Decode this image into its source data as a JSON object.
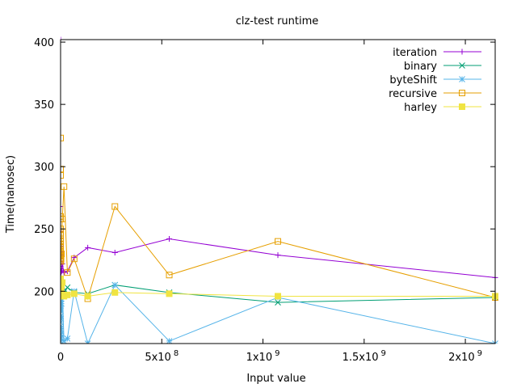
{
  "chart_data": {
    "type": "line",
    "title": "clz-test runtime",
    "xlabel": "Input value",
    "ylabel": "Time(nanosec)",
    "xlim": [
      0,
      2147483648
    ],
    "ylim": [
      158,
      402
    ],
    "grid": false,
    "legend_position": "top-right",
    "y_ticks": [
      {
        "value": 200,
        "label": "200"
      },
      {
        "value": 250,
        "label": "250"
      },
      {
        "value": 300,
        "label": "300"
      },
      {
        "value": 350,
        "label": "350"
      },
      {
        "value": 400,
        "label": "400"
      }
    ],
    "x_ticks": [
      {
        "value": 0,
        "base": "0",
        "exp": ""
      },
      {
        "value": 500000000,
        "base": "5x10",
        "exp": "8"
      },
      {
        "value": 1000000000,
        "base": "1x10",
        "exp": "9"
      },
      {
        "value": 1500000000,
        "base": "1.5x10",
        "exp": "9"
      },
      {
        "value": 2000000000,
        "base": "2x10",
        "exp": "9"
      }
    ],
    "series": [
      {
        "name": "iteration",
        "color": "#9400d3",
        "marker": "plus",
        "points": [
          [
            1,
            402
          ],
          [
            2,
            268
          ],
          [
            4,
            248
          ],
          [
            8,
            240
          ],
          [
            16,
            236
          ],
          [
            32,
            232
          ],
          [
            64,
            229
          ],
          [
            128,
            226
          ],
          [
            256,
            224
          ],
          [
            512,
            222
          ],
          [
            1024,
            221
          ],
          [
            2048,
            220
          ],
          [
            4096,
            219
          ],
          [
            8192,
            218
          ],
          [
            16384,
            218
          ],
          [
            32768,
            217
          ],
          [
            65536,
            217
          ],
          [
            131072,
            216
          ],
          [
            262144,
            216
          ],
          [
            524288,
            215
          ],
          [
            1048576,
            215
          ],
          [
            2097152,
            215
          ],
          [
            4194304,
            216
          ],
          [
            8388608,
            222
          ],
          [
            16777216,
            215
          ],
          [
            33554432,
            216
          ],
          [
            67108864,
            227
          ],
          [
            134217728,
            235
          ],
          [
            268435456,
            231
          ],
          [
            536870912,
            242
          ],
          [
            1073741824,
            229
          ],
          [
            2147483648,
            211
          ]
        ]
      },
      {
        "name": "binary",
        "color": "#009e73",
        "marker": "cross",
        "points": [
          [
            1,
            202
          ],
          [
            2,
            200
          ],
          [
            4,
            198
          ],
          [
            8,
            197
          ],
          [
            16,
            199
          ],
          [
            32,
            201
          ],
          [
            64,
            200
          ],
          [
            128,
            198
          ],
          [
            256,
            197
          ],
          [
            512,
            199
          ],
          [
            1024,
            201
          ],
          [
            2048,
            200
          ],
          [
            4096,
            198
          ],
          [
            8192,
            197
          ],
          [
            16384,
            199
          ],
          [
            32768,
            200
          ],
          [
            65536,
            198
          ],
          [
            131072,
            197
          ],
          [
            262144,
            199
          ],
          [
            524288,
            200
          ],
          [
            1048576,
            198
          ],
          [
            2097152,
            197
          ],
          [
            4194304,
            199
          ],
          [
            8388608,
            200
          ],
          [
            16777216,
            198
          ],
          [
            33554432,
            203
          ],
          [
            67108864,
            199
          ],
          [
            134217728,
            198
          ],
          [
            268435456,
            205
          ],
          [
            536870912,
            199
          ],
          [
            1073741824,
            191
          ],
          [
            2147483648,
            195
          ]
        ]
      },
      {
        "name": "byteShift",
        "color": "#56b4e9",
        "marker": "star",
        "points": [
          [
            1,
            185
          ],
          [
            2,
            178
          ],
          [
            4,
            172
          ],
          [
            8,
            168
          ],
          [
            16,
            165
          ],
          [
            32,
            162
          ],
          [
            64,
            160
          ],
          [
            128,
            163
          ],
          [
            256,
            166
          ],
          [
            512,
            170
          ],
          [
            1024,
            175
          ],
          [
            2048,
            180
          ],
          [
            4096,
            186
          ],
          [
            8192,
            190
          ],
          [
            16384,
            195
          ],
          [
            32768,
            198
          ],
          [
            65536,
            200
          ],
          [
            131072,
            192
          ],
          [
            262144,
            188
          ],
          [
            524288,
            184
          ],
          [
            1048576,
            180
          ],
          [
            2097152,
            178
          ],
          [
            4194304,
            190
          ],
          [
            8388608,
            200
          ],
          [
            16777216,
            160
          ],
          [
            33554432,
            162
          ],
          [
            67108864,
            200
          ],
          [
            134217728,
            158
          ],
          [
            268435456,
            205
          ],
          [
            536870912,
            160
          ],
          [
            1073741824,
            195
          ],
          [
            2147483648,
            158
          ]
        ]
      },
      {
        "name": "recursive",
        "color": "#e69f00",
        "marker": "square",
        "points": [
          [
            1,
            323
          ],
          [
            2,
            298
          ],
          [
            4,
            293
          ],
          [
            8,
            260
          ],
          [
            16,
            258
          ],
          [
            32,
            250
          ],
          [
            64,
            245
          ],
          [
            128,
            242
          ],
          [
            256,
            240
          ],
          [
            512,
            238
          ],
          [
            1024,
            236
          ],
          [
            2048,
            235
          ],
          [
            4096,
            233
          ],
          [
            8192,
            232
          ],
          [
            16384,
            230
          ],
          [
            32768,
            229
          ],
          [
            65536,
            228
          ],
          [
            131072,
            227
          ],
          [
            262144,
            226
          ],
          [
            524288,
            225
          ],
          [
            1048576,
            224
          ],
          [
            2097152,
            226
          ],
          [
            4194304,
            230
          ],
          [
            8388608,
            258
          ],
          [
            16777216,
            284
          ],
          [
            33554432,
            215
          ],
          [
            67108864,
            226
          ],
          [
            134217728,
            194
          ],
          [
            268435456,
            268
          ],
          [
            536870912,
            213
          ],
          [
            1073741824,
            240
          ],
          [
            2147483648,
            195
          ]
        ]
      },
      {
        "name": "harley",
        "color": "#f0e442",
        "marker": "filled-square",
        "points": [
          [
            1,
            210
          ],
          [
            2,
            208
          ],
          [
            4,
            206
          ],
          [
            8,
            205
          ],
          [
            16,
            204
          ],
          [
            32,
            203
          ],
          [
            64,
            202
          ],
          [
            128,
            201
          ],
          [
            256,
            200
          ],
          [
            512,
            199
          ],
          [
            1024,
            198
          ],
          [
            2048,
            198
          ],
          [
            4096,
            197
          ],
          [
            8192,
            197
          ],
          [
            16384,
            196
          ],
          [
            32768,
            196
          ],
          [
            65536,
            196
          ],
          [
            131072,
            197
          ],
          [
            262144,
            197
          ],
          [
            524288,
            198
          ],
          [
            1048576,
            198
          ],
          [
            2097152,
            199
          ],
          [
            4194304,
            204
          ],
          [
            8388608,
            207
          ],
          [
            16777216,
            196
          ],
          [
            33554432,
            197
          ],
          [
            67108864,
            198
          ],
          [
            134217728,
            196
          ],
          [
            268435456,
            199
          ],
          [
            536870912,
            198
          ],
          [
            1073741824,
            196
          ],
          [
            2147483648,
            196
          ]
        ]
      }
    ]
  }
}
